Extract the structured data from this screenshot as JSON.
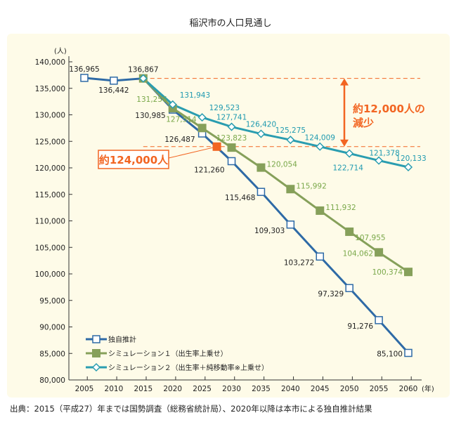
{
  "chart_data": {
    "type": "line",
    "title": "稲沢市の人口見通し",
    "ylabel": "(人)",
    "xlabel": "(年)",
    "ylim": [
      80000,
      140000
    ],
    "yticks": [
      80000,
      85000,
      90000,
      95000,
      100000,
      105000,
      110000,
      115000,
      120000,
      125000,
      130000,
      135000,
      140000
    ],
    "ytick_labels": [
      "80,000",
      "85,000",
      "90,000",
      "95,000",
      "100,000",
      "105,000",
      "110,000",
      "115,000",
      "120,000",
      "125,000",
      "130,000",
      "135,000",
      "140,000"
    ],
    "x": [
      2005,
      2010,
      2015,
      2020,
      2025,
      2030,
      2035,
      2040,
      2045,
      2050,
      2055,
      2060
    ],
    "xtick_labels": [
      "2005",
      "2010",
      "2015",
      "2020",
      "2025",
      "2030",
      "2035",
      "2040",
      "2045",
      "2050",
      "2055",
      "2060"
    ],
    "series": [
      {
        "name": "独自推計",
        "color": "#2e6aa6",
        "marker": "square-open",
        "x": [
          2005,
          2010,
          2015,
          2020,
          2025,
          2030,
          2035,
          2040,
          2045,
          2050,
          2055,
          2060
        ],
        "values": [
          136965,
          136442,
          136867,
          130985,
          126487,
          121260,
          115468,
          109303,
          103272,
          97329,
          91276,
          85100
        ],
        "labels": [
          "136,965",
          "136,442",
          "136,867",
          "130,985",
          "126,487",
          "121,260",
          "115,468",
          "109,303",
          "103,272",
          "97,329",
          "91,276",
          "85,100"
        ]
      },
      {
        "name": "シミュレーション１（出生率上乗せ）",
        "color": "#86a05a",
        "marker": "square-filled",
        "x": [
          2015,
          2020,
          2025,
          2030,
          2035,
          2040,
          2045,
          2050,
          2055,
          2060
        ],
        "values": [
          136867,
          131256,
          127514,
          123823,
          120054,
          115992,
          111932,
          107955,
          104062,
          100374
        ],
        "labels": [
          "",
          "131,256",
          "127,514",
          "123,823",
          "120,054",
          "115,992",
          "111,932",
          "107,955",
          "104,062",
          "100,374"
        ]
      },
      {
        "name": "シミュレーション２（出生率＋純移動率※上乗せ）",
        "color": "#2a9db0",
        "marker": "diamond-open",
        "x": [
          2015,
          2020,
          2025,
          2030,
          2035,
          2040,
          2045,
          2050,
          2055,
          2060
        ],
        "values": [
          136867,
          131943,
          129523,
          127741,
          126420,
          125275,
          124009,
          122714,
          121378,
          120133
        ],
        "labels": [
          "",
          "131,943",
          "129,523",
          "127,741",
          "126,420",
          "125,275",
          "124,009",
          "122,714",
          "121,378",
          "120,133"
        ]
      }
    ],
    "annotations": {
      "target_label": "約124,000人",
      "target_x": 2027.5,
      "target_value": 124000,
      "diff_label_line1": "約12,000人の",
      "diff_label_line2": "減少",
      "ref_lines": [
        136867,
        124000
      ],
      "accent": "#f26522"
    },
    "legend_placement": "bottom-left",
    "grid": false
  },
  "footer": "出典：2015（平成27）年までは国勢調査（総務省統計局）、2020年以降は本市による独自推計結果"
}
